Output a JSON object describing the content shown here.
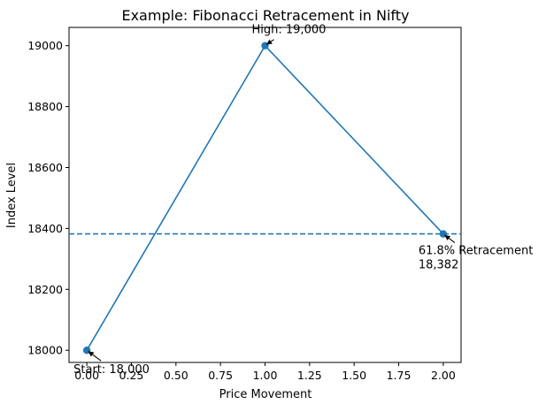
{
  "chart_data": {
    "type": "line",
    "title": "Example: Fibonacci Retracement in Nifty",
    "xlabel": "Price Movement",
    "ylabel": "Index Level",
    "xlim": [
      -0.1,
      2.1
    ],
    "ylim": [
      17960,
      19060
    ],
    "xticks": [
      0.0,
      0.25,
      0.5,
      0.75,
      1.0,
      1.25,
      1.5,
      1.75,
      2.0
    ],
    "xtick_labels": [
      "0.00",
      "0.25",
      "0.50",
      "0.75",
      "1.00",
      "1.25",
      "1.50",
      "1.75",
      "2.00"
    ],
    "yticks": [
      18000,
      18200,
      18400,
      18600,
      18800,
      19000
    ],
    "ytick_labels": [
      "18000",
      "18200",
      "18400",
      "18600",
      "18800",
      "19000"
    ],
    "grid": false,
    "series": [
      {
        "x": [
          0,
          1,
          2
        ],
        "y": [
          18000,
          19000,
          18382
        ],
        "color": "#1f77b4"
      }
    ],
    "hline": {
      "y": 18382,
      "style": "dashed",
      "color": "#1f77b4"
    },
    "annotations": [
      {
        "lines": [
          "Start: 18,000"
        ],
        "x": 0,
        "y": 18000
      },
      {
        "lines": [
          "High: 19,000"
        ],
        "x": 1,
        "y": 19000
      },
      {
        "lines": [
          "61.8% Retracement",
          "18,382"
        ],
        "x": 2,
        "y": 18382
      }
    ]
  }
}
